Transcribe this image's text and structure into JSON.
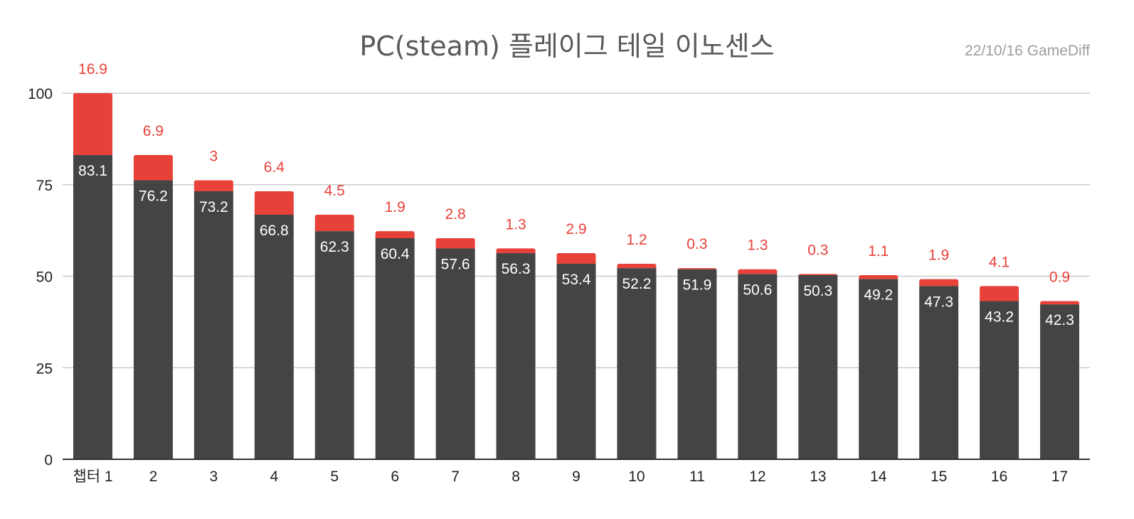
{
  "chart_data": {
    "type": "bar",
    "stacked": true,
    "title": "PC(steam) 플레이그 테일 이노센스",
    "subtitle": "22/10/16  GameDiff",
    "categories": [
      "챕터 1",
      "2",
      "3",
      "4",
      "5",
      "6",
      "7",
      "8",
      "9",
      "10",
      "11",
      "12",
      "13",
      "14",
      "15",
      "16",
      "17"
    ],
    "series": [
      {
        "values": [
          83.1,
          76.2,
          73.2,
          66.8,
          62.3,
          60.4,
          57.6,
          56.3,
          53.4,
          52.2,
          51.9,
          50.6,
          50.3,
          49.2,
          47.3,
          43.2,
          42.3
        ]
      },
      {
        "values": [
          16.9,
          6.9,
          3,
          6.4,
          4.5,
          1.9,
          2.8,
          1.3,
          2.9,
          1.2,
          0.3,
          1.3,
          0.3,
          1.1,
          1.9,
          4.1,
          0.9
        ]
      }
    ],
    "ylim": [
      0,
      100
    ],
    "yticks": [
      0,
      25,
      50,
      75,
      100
    ],
    "grid": true,
    "colors": {
      "base": "#444444",
      "top": "#e8413a",
      "grid": "#cccccc",
      "axis": "#333333",
      "base_label": "#ffffff",
      "top_label": "#e8413a",
      "tick_label": "#222222"
    }
  }
}
